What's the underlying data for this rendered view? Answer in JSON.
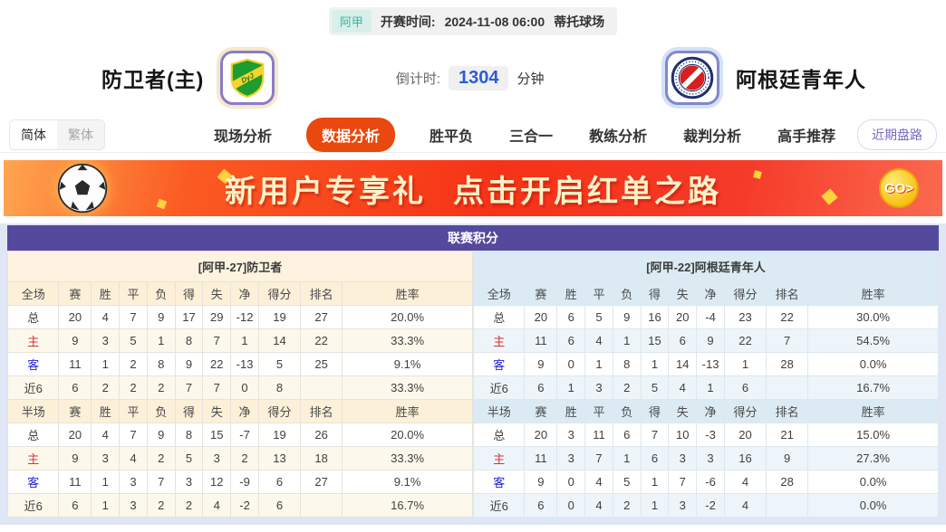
{
  "top_bar": {
    "league_badge": "阿甲",
    "kickoff_label": "开赛时间:",
    "kickoff_time": "2024-11-08 06:00",
    "venue": "蒂托球场"
  },
  "teams": {
    "home": {
      "name": "防卫者(主)",
      "logo_text": "DyJ"
    },
    "away": {
      "name": "阿根廷青年人"
    },
    "countdown": {
      "label": "倒计时:",
      "value": "1304",
      "unit": "分钟"
    }
  },
  "nav": {
    "lang_toggle": {
      "simplified": "简体",
      "traditional": "繁体"
    },
    "tabs": [
      {
        "label": "现场分析",
        "active": false
      },
      {
        "label": "数据分析",
        "active": true
      },
      {
        "label": "胜平负",
        "active": false
      },
      {
        "label": "三合一",
        "active": false
      },
      {
        "label": "教练分析",
        "active": false
      },
      {
        "label": "裁判分析",
        "active": false
      },
      {
        "label": "高手推荐",
        "active": false
      }
    ],
    "recent_button": "近期盘路"
  },
  "banner": {
    "text_part1": "新用户专享礼",
    "text_part2": "点击开启红单之路",
    "go_label": "GO>"
  },
  "standings": {
    "title": "联赛积分",
    "columns_full": [
      "全场",
      "赛",
      "胜",
      "平",
      "负",
      "得",
      "失",
      "净",
      "得分",
      "排名",
      "胜率"
    ],
    "columns_half": [
      "半场",
      "赛",
      "胜",
      "平",
      "负",
      "得",
      "失",
      "净",
      "得分",
      "排名",
      "胜率"
    ],
    "home": {
      "team_header": "[阿甲-27]防卫者",
      "full": [
        {
          "label": "总",
          "values": [
            "20",
            "4",
            "7",
            "9",
            "17",
            "29",
            "-12",
            "19",
            "27",
            "20.0%"
          ]
        },
        {
          "label": "主",
          "values": [
            "9",
            "3",
            "5",
            "1",
            "8",
            "7",
            "1",
            "14",
            "22",
            "33.3%"
          ]
        },
        {
          "label": "客",
          "values": [
            "11",
            "1",
            "2",
            "8",
            "9",
            "22",
            "-13",
            "5",
            "25",
            "9.1%"
          ]
        },
        {
          "label": "近6",
          "values": [
            "6",
            "2",
            "2",
            "2",
            "7",
            "7",
            "0",
            "8",
            "",
            "33.3%"
          ]
        }
      ],
      "half": [
        {
          "label": "总",
          "values": [
            "20",
            "4",
            "7",
            "9",
            "8",
            "15",
            "-7",
            "19",
            "26",
            "20.0%"
          ]
        },
        {
          "label": "主",
          "values": [
            "9",
            "3",
            "4",
            "2",
            "5",
            "3",
            "2",
            "13",
            "18",
            "33.3%"
          ]
        },
        {
          "label": "客",
          "values": [
            "11",
            "1",
            "3",
            "7",
            "3",
            "12",
            "-9",
            "6",
            "27",
            "9.1%"
          ]
        },
        {
          "label": "近6",
          "values": [
            "6",
            "1",
            "3",
            "2",
            "2",
            "4",
            "-2",
            "6",
            "",
            "16.7%"
          ]
        }
      ]
    },
    "away": {
      "team_header": "[阿甲-22]阿根廷青年人",
      "full": [
        {
          "label": "总",
          "values": [
            "20",
            "6",
            "5",
            "9",
            "16",
            "20",
            "-4",
            "23",
            "22",
            "30.0%"
          ]
        },
        {
          "label": "主",
          "values": [
            "11",
            "6",
            "4",
            "1",
            "15",
            "6",
            "9",
            "22",
            "7",
            "54.5%"
          ]
        },
        {
          "label": "客",
          "values": [
            "9",
            "0",
            "1",
            "8",
            "1",
            "14",
            "-13",
            "1",
            "28",
            "0.0%"
          ]
        },
        {
          "label": "近6",
          "values": [
            "6",
            "1",
            "3",
            "2",
            "5",
            "4",
            "1",
            "6",
            "",
            "16.7%"
          ]
        }
      ],
      "half": [
        {
          "label": "总",
          "values": [
            "20",
            "3",
            "11",
            "6",
            "7",
            "10",
            "-3",
            "20",
            "21",
            "15.0%"
          ]
        },
        {
          "label": "主",
          "values": [
            "11",
            "3",
            "7",
            "1",
            "6",
            "3",
            "3",
            "16",
            "9",
            "27.3%"
          ]
        },
        {
          "label": "客",
          "values": [
            "9",
            "0",
            "4",
            "5",
            "1",
            "7",
            "-6",
            "4",
            "28",
            "0.0%"
          ]
        },
        {
          "label": "近6",
          "values": [
            "6",
            "0",
            "4",
            "2",
            "1",
            "3",
            "-2",
            "4",
            "",
            "0.0%"
          ]
        }
      ]
    }
  },
  "colors": {
    "active_tab_orange": "#e9480e",
    "title_purple": "#55499e",
    "countdown_blue": "#2b5cd8",
    "league_teal": "#3cb3a3",
    "home_row_label_red": "#d43434",
    "away_row_label_blue": "#2323d8"
  }
}
